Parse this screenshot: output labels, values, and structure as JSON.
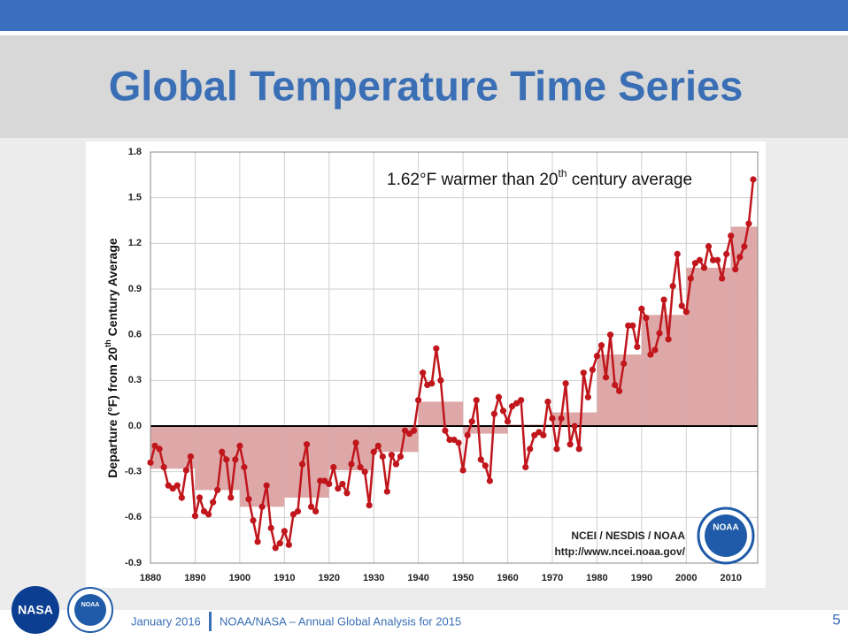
{
  "header": {
    "title": "Global Temperature Time Series"
  },
  "chart_data": {
    "type": "line",
    "annotation_parts": [
      "1.62°F warmer than 20",
      "th",
      " century average"
    ],
    "y_label_parts": [
      "Departure  (°F) from 20",
      "th",
      " Century Average"
    ],
    "credits": [
      "NCEI / NESDIS / NOAA",
      "http://www.ncei.noaa.gov/"
    ],
    "logo_text": "NOAA",
    "color": "#c0161c",
    "x": [
      1880,
      1881,
      1882,
      1883,
      1884,
      1885,
      1886,
      1887,
      1888,
      1889,
      1890,
      1891,
      1892,
      1893,
      1894,
      1895,
      1896,
      1897,
      1898,
      1899,
      1900,
      1901,
      1902,
      1903,
      1904,
      1905,
      1906,
      1907,
      1908,
      1909,
      1910,
      1911,
      1912,
      1913,
      1914,
      1915,
      1916,
      1917,
      1918,
      1919,
      1920,
      1921,
      1922,
      1923,
      1924,
      1925,
      1926,
      1927,
      1928,
      1929,
      1930,
      1931,
      1932,
      1933,
      1934,
      1935,
      1936,
      1937,
      1938,
      1939,
      1940,
      1941,
      1942,
      1943,
      1944,
      1945,
      1946,
      1947,
      1948,
      1949,
      1950,
      1951,
      1952,
      1953,
      1954,
      1955,
      1956,
      1957,
      1958,
      1959,
      1960,
      1961,
      1962,
      1963,
      1964,
      1965,
      1966,
      1967,
      1968,
      1969,
      1970,
      1971,
      1972,
      1973,
      1974,
      1975,
      1976,
      1977,
      1978,
      1979,
      1980,
      1981,
      1982,
      1983,
      1984,
      1985,
      1986,
      1987,
      1988,
      1989,
      1990,
      1991,
      1992,
      1993,
      1994,
      1995,
      1996,
      1997,
      1998,
      1999,
      2000,
      2001,
      2002,
      2003,
      2004,
      2005,
      2006,
      2007,
      2008,
      2009,
      2010,
      2011,
      2012,
      2013,
      2014,
      2015
    ],
    "values": [
      -0.24,
      -0.13,
      -0.15,
      -0.27,
      -0.39,
      -0.41,
      -0.39,
      -0.47,
      -0.29,
      -0.2,
      -0.59,
      -0.47,
      -0.56,
      -0.58,
      -0.5,
      -0.42,
      -0.17,
      -0.22,
      -0.47,
      -0.22,
      -0.13,
      -0.27,
      -0.48,
      -0.62,
      -0.76,
      -0.53,
      -0.39,
      -0.67,
      -0.8,
      -0.77,
      -0.69,
      -0.78,
      -0.58,
      -0.56,
      -0.25,
      -0.12,
      -0.53,
      -0.56,
      -0.36,
      -0.36,
      -0.38,
      -0.27,
      -0.41,
      -0.38,
      -0.44,
      -0.25,
      -0.11,
      -0.27,
      -0.3,
      -0.52,
      -0.17,
      -0.13,
      -0.2,
      -0.43,
      -0.19,
      -0.25,
      -0.2,
      -0.03,
      -0.05,
      -0.03,
      0.17,
      0.35,
      0.27,
      0.28,
      0.51,
      0.3,
      -0.03,
      -0.09,
      -0.09,
      -0.11,
      -0.29,
      -0.06,
      0.03,
      0.17,
      -0.22,
      -0.26,
      -0.36,
      0.08,
      0.19,
      0.1,
      0.03,
      0.13,
      0.15,
      0.17,
      -0.27,
      -0.15,
      -0.06,
      -0.04,
      -0.06,
      0.16,
      0.05,
      -0.15,
      0.05,
      0.28,
      -0.12,
      0.0,
      -0.15,
      0.35,
      0.19,
      0.37,
      0.46,
      0.53,
      0.32,
      0.6,
      0.27,
      0.23,
      0.41,
      0.66,
      0.66,
      0.52,
      0.77,
      0.71,
      0.47,
      0.5,
      0.61,
      0.83,
      0.57,
      0.92,
      1.13,
      0.79,
      0.75,
      0.97,
      1.07,
      1.09,
      1.04,
      1.18,
      1.09,
      1.09,
      0.97,
      1.13,
      1.25,
      1.03,
      1.11,
      1.18,
      1.33,
      1.62
    ],
    "decadal": {
      "color": "#dca3a3",
      "starts": [
        1880,
        1890,
        1900,
        1910,
        1920,
        1930,
        1940,
        1950,
        1960,
        1970,
        1980,
        1990,
        2000,
        2010
      ],
      "values": [
        -0.28,
        -0.42,
        -0.53,
        -0.47,
        -0.29,
        -0.17,
        0.16,
        -0.05,
        0.01,
        0.09,
        0.47,
        0.73,
        1.04,
        1.31
      ]
    },
    "xlim": [
      1880,
      2016
    ],
    "xticks": [
      1880,
      1890,
      1900,
      1910,
      1920,
      1930,
      1940,
      1950,
      1960,
      1970,
      1980,
      1990,
      2000,
      2010
    ],
    "ylim": [
      -0.9,
      1.8
    ],
    "yticks": [
      1.8,
      1.5,
      1.2,
      0.9,
      0.6,
      0.3,
      {
        "value": 0,
        "label": "0.0"
      },
      -0.3,
      -0.6,
      -0.9
    ],
    "grid": true
  },
  "footer": {
    "date": "January 2016",
    "text": "NOAA/NASA – Annual Global Analysis for 2015",
    "page": "5",
    "logos": [
      "NASA",
      "NOAA"
    ]
  }
}
